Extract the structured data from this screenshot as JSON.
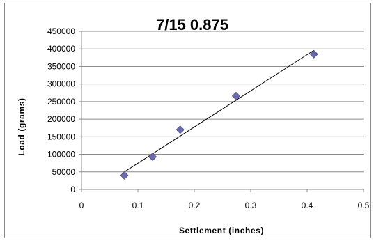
{
  "chart_data": {
    "type": "scatter",
    "title": "7/15 0.875",
    "xlabel": "Settlement (inches)",
    "ylabel": "Load (grams)",
    "xlim": [
      0,
      0.5
    ],
    "ylim": [
      0,
      450000
    ],
    "x_ticks": [
      "0",
      "0.1",
      "0.2",
      "0.3",
      "0.4",
      "0.5"
    ],
    "y_ticks": [
      "0",
      "50000",
      "100000",
      "150000",
      "200000",
      "250000",
      "300000",
      "350000",
      "400000",
      "450000"
    ],
    "grid": "horizontal",
    "legend": "none",
    "marker": "diamond",
    "marker_color": "#6b6bab",
    "series": [
      {
        "points": [
          {
            "x": 0.076,
            "y": 40000
          },
          {
            "x": 0.126,
            "y": 93000
          },
          {
            "x": 0.175,
            "y": 170000
          },
          {
            "x": 0.274,
            "y": 266000
          },
          {
            "x": 0.412,
            "y": 385000
          }
        ],
        "trendline": {
          "type": "linear",
          "from": {
            "x": 0.076,
            "y": 50000
          },
          "to": {
            "x": 0.412,
            "y": 396000
          }
        }
      }
    ]
  }
}
